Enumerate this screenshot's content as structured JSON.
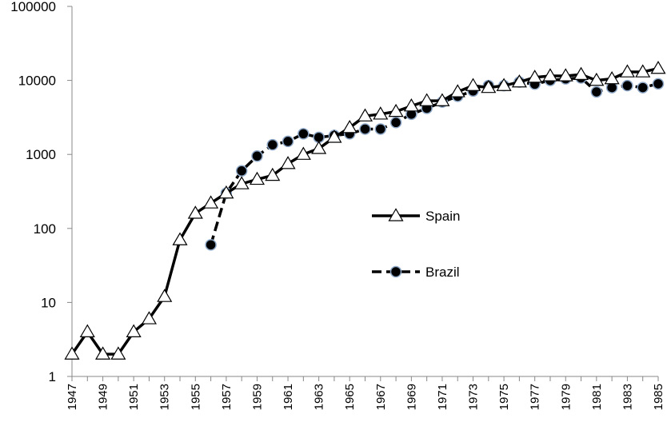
{
  "chart_data": {
    "type": "line",
    "y_scale": "log",
    "ylim": [
      1,
      100000
    ],
    "xlim": [
      1947,
      1985
    ],
    "y_ticks": [
      1,
      10,
      100,
      1000,
      10000,
      100000
    ],
    "y_tick_labels": [
      "1",
      "10",
      "100",
      "1000",
      "10000",
      "100000"
    ],
    "x_ticks": [
      1947,
      1949,
      1951,
      1953,
      1955,
      1957,
      1959,
      1961,
      1963,
      1965,
      1967,
      1969,
      1971,
      1973,
      1975,
      1977,
      1979,
      1981,
      1983,
      1985
    ],
    "x_tick_labels": [
      "1947",
      "1949",
      "1951",
      "1953",
      "1955",
      "1957",
      "1959",
      "1961",
      "1963",
      "1965",
      "1967",
      "1969",
      "1971",
      "1973",
      "1975",
      "1977",
      "1979",
      "1981",
      "1983",
      "1985"
    ],
    "grid": false,
    "legend_position": "center-right",
    "series": [
      {
        "name": "Spain",
        "marker": "triangle",
        "line_style": "solid",
        "color": "#000000",
        "x": [
          1947,
          1948,
          1949,
          1950,
          1951,
          1952,
          1953,
          1954,
          1955,
          1956,
          1957,
          1958,
          1959,
          1960,
          1961,
          1962,
          1963,
          1964,
          1965,
          1966,
          1967,
          1968,
          1969,
          1970,
          1971,
          1972,
          1973,
          1974,
          1975,
          1976,
          1977,
          1978,
          1979,
          1980,
          1981,
          1982,
          1983,
          1984,
          1985
        ],
        "y": [
          2,
          4,
          2,
          2,
          4,
          6,
          12,
          70,
          160,
          220,
          300,
          400,
          460,
          520,
          750,
          1000,
          1200,
          1700,
          2300,
          3300,
          3500,
          3800,
          4500,
          5300,
          5300,
          7000,
          8500,
          8000,
          8500,
          9500,
          11000,
          11500,
          11500,
          12000,
          10000,
          10500,
          13000,
          13000,
          14500
        ]
      },
      {
        "name": "Brazil",
        "marker": "circle",
        "line_style": "dashed",
        "color": "#000000",
        "x": [
          1956,
          1957,
          1958,
          1959,
          1960,
          1961,
          1962,
          1963,
          1964,
          1965,
          1966,
          1967,
          1968,
          1969,
          1970,
          1971,
          1972,
          1973,
          1974,
          1975,
          1976,
          1977,
          1978,
          1979,
          1980,
          1981,
          1982,
          1983,
          1984,
          1985
        ],
        "y": [
          60,
          300,
          600,
          950,
          1350,
          1500,
          1900,
          1700,
          1800,
          1900,
          2200,
          2200,
          2700,
          3500,
          4200,
          5100,
          6100,
          7200,
          8500,
          8500,
          9500,
          8900,
          10000,
          10500,
          10800,
          7000,
          8000,
          8500,
          8000,
          9000
        ]
      }
    ]
  }
}
